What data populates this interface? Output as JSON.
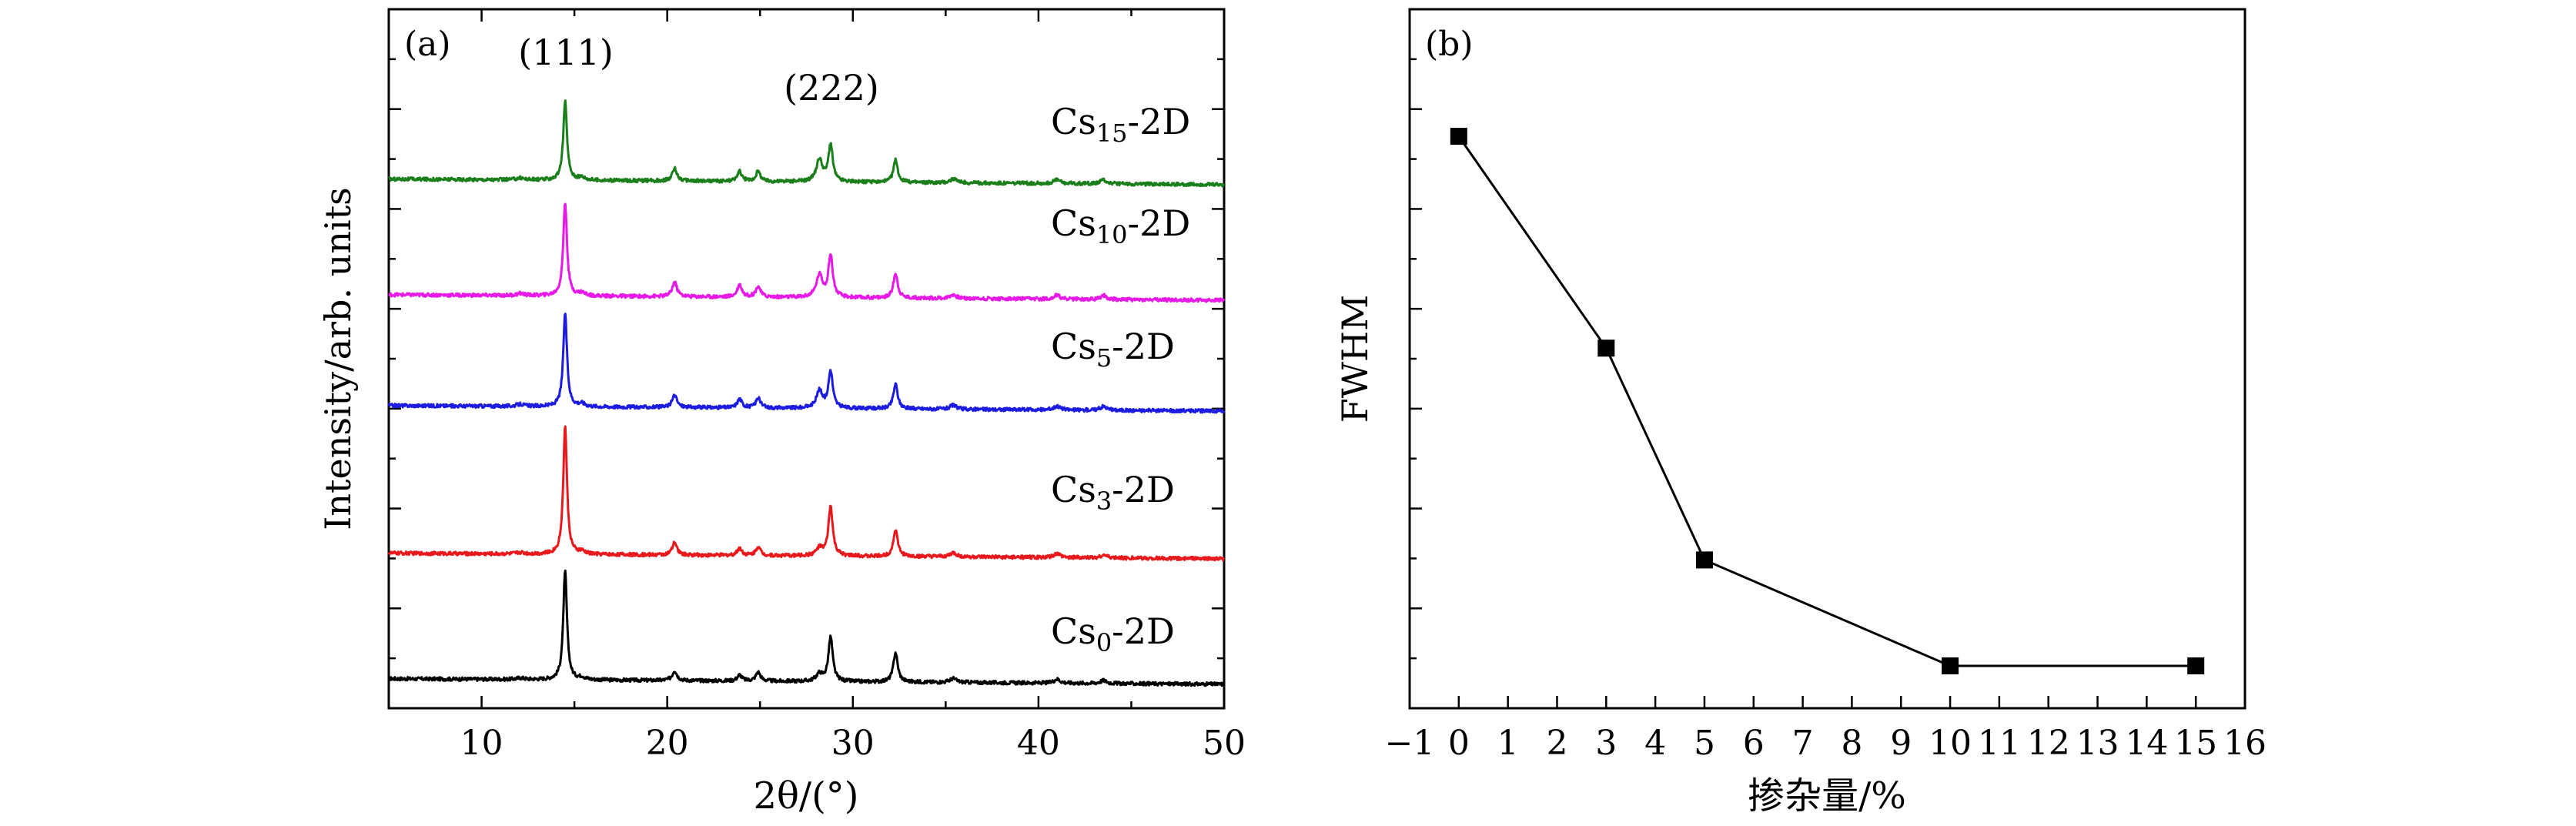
{
  "chart_data": [
    {
      "panel": "a",
      "type": "line",
      "panel_label": "(a)",
      "xlabel": "2θ/(°)",
      "ylabel": "Intensity/arb. units",
      "xlim": [
        5,
        50
      ],
      "xticks": [
        10,
        20,
        30,
        40,
        50
      ],
      "yticks_labeled": false,
      "peak_labels": [
        {
          "text": "(111)",
          "x": 14.5
        },
        {
          "text": "(222)",
          "x": 28.8
        }
      ],
      "peaks": {
        "positions": [
          12.1,
          14.5,
          15.4,
          20.4,
          23.9,
          24.9,
          28.2,
          28.8,
          32.3,
          35.4,
          41.0,
          43.5
        ],
        "widths": [
          0.25,
          0.12,
          0.2,
          0.15,
          0.15,
          0.15,
          0.2,
          0.14,
          0.14,
          0.2,
          0.2,
          0.2
        ]
      },
      "series": [
        {
          "name": "Cs0-2D",
          "label_main": "Cs",
          "label_sub": "0",
          "label_tail": "-2D",
          "color": "#000000",
          "offset": 0.0,
          "amplitudes": [
            0.03,
            2.2,
            0.05,
            0.2,
            0.12,
            0.18,
            0.15,
            0.9,
            0.6,
            0.08,
            0.08,
            0.06
          ]
        },
        {
          "name": "Cs3-2D",
          "label_main": "Cs",
          "label_sub": "3",
          "label_tail": "-2D",
          "color": "#e8191c",
          "offset": 2.55,
          "amplitudes": [
            0.03,
            2.6,
            0.05,
            0.25,
            0.15,
            0.18,
            0.15,
            1.0,
            0.55,
            0.08,
            0.08,
            0.06
          ]
        },
        {
          "name": "Cs5-2D",
          "label_main": "Cs",
          "label_sub": "5",
          "label_tail": "-2D",
          "color": "#1c1ce0",
          "offset": 5.55,
          "amplitudes": [
            0.04,
            1.9,
            0.06,
            0.25,
            0.18,
            0.2,
            0.35,
            0.75,
            0.5,
            0.08,
            0.08,
            0.08
          ]
        },
        {
          "name": "Cs10-2D",
          "label_main": "Cs",
          "label_sub": "10",
          "label_tail": "-2D",
          "color": "#e619e6",
          "offset": 7.8,
          "amplitudes": [
            0.04,
            1.9,
            0.06,
            0.3,
            0.25,
            0.22,
            0.45,
            0.85,
            0.5,
            0.08,
            0.08,
            0.08
          ]
        },
        {
          "name": "Cs15-2D",
          "label_main": "Cs",
          "label_sub": "15",
          "label_tail": "-2D",
          "color": "#1a7f1a",
          "offset": 10.15,
          "amplitudes": [
            0.04,
            1.6,
            0.06,
            0.25,
            0.2,
            0.2,
            0.45,
            0.75,
            0.45,
            0.08,
            0.08,
            0.08
          ]
        }
      ],
      "ylim": [
        -0.6,
        13.6
      ]
    },
    {
      "panel": "b",
      "type": "scatter",
      "panel_label": "(b)",
      "xlabel": "掺杂量/%",
      "ylabel": "FWHM",
      "xlim": [
        -1,
        16
      ],
      "xticks": [
        -1,
        0,
        1,
        2,
        3,
        4,
        5,
        6,
        7,
        8,
        9,
        10,
        11,
        12,
        13,
        14,
        15,
        16
      ],
      "xtick_labels": [
        "−1",
        "0",
        "1",
        "2",
        "3",
        "4",
        "5",
        "6",
        "7",
        "8",
        "9",
        "10",
        "11",
        "12",
        "13",
        "14",
        "15",
        "16"
      ],
      "ylim": [
        0.02,
        0.35
      ],
      "yticks_major_count": 6,
      "yticks_labeled": false,
      "x": [
        0,
        3,
        5,
        10,
        15
      ],
      "y": [
        0.29,
        0.19,
        0.09,
        0.04,
        0.04
      ],
      "marker": "square",
      "color": "#000000"
    }
  ]
}
